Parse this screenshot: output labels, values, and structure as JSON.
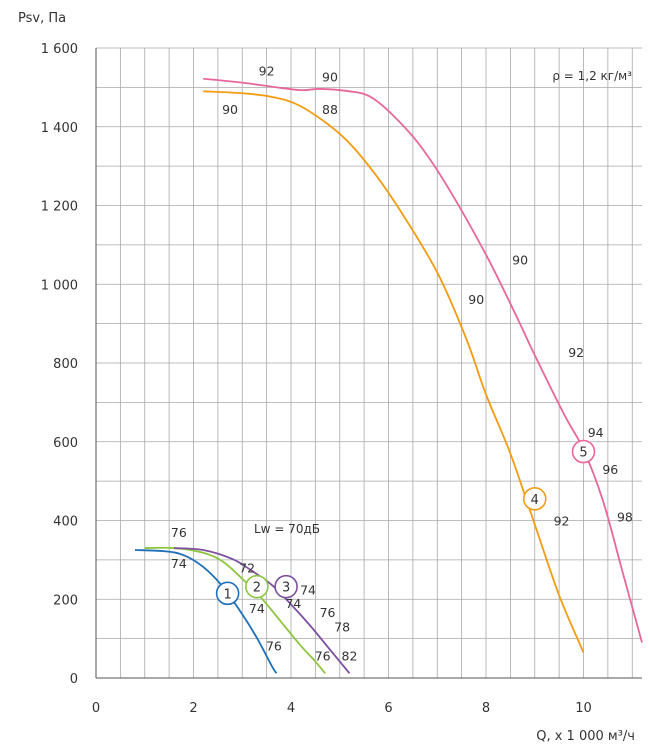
{
  "chart_data": {
    "type": "line",
    "ylabel": "Psv, Па",
    "xlabel": "Q, х 1 000 м³/ч",
    "xlim": [
      0,
      11.2
    ],
    "ylim": [
      0,
      1600
    ],
    "x_ticks": [
      0,
      2,
      4,
      6,
      8,
      10
    ],
    "x_tick_labels": [
      "0",
      "2",
      "4",
      "6",
      "8",
      "10"
    ],
    "y_ticks": [
      0,
      200,
      400,
      600,
      800,
      1000,
      1200,
      1400,
      1600
    ],
    "y_tick_labels": [
      "0",
      "200",
      "400",
      "600",
      "800",
      "1 000",
      "1 200",
      "1 400",
      "1 600"
    ],
    "grid": true,
    "minor_grid": {
      "x_step": 0.5,
      "y_step": 100
    },
    "density_note": "ρ = 1,2 кг/м³",
    "noise_note": "Lw = 70дБ",
    "series": [
      {
        "id": "1",
        "color": "#1f6fb8",
        "points": [
          [
            0.8,
            325
          ],
          [
            1.4,
            322
          ],
          [
            1.8,
            312
          ],
          [
            2.2,
            282
          ],
          [
            2.6,
            232
          ],
          [
            3.0,
            162
          ],
          [
            3.3,
            102
          ],
          [
            3.6,
            32
          ],
          [
            3.7,
            12
          ]
        ],
        "marker": [
          2.7,
          215
        ]
      },
      {
        "id": "2",
        "color": "#8cc63f",
        "points": [
          [
            1.0,
            330
          ],
          [
            1.6,
            330
          ],
          [
            2.2,
            318
          ],
          [
            2.6,
            296
          ],
          [
            3.0,
            252
          ],
          [
            3.4,
            202
          ],
          [
            3.8,
            142
          ],
          [
            4.2,
            82
          ],
          [
            4.5,
            42
          ],
          [
            4.7,
            12
          ]
        ],
        "marker": [
          3.3,
          232
        ]
      },
      {
        "id": "3",
        "color": "#7e4fa0",
        "points": [
          [
            1.6,
            330
          ],
          [
            2.2,
            325
          ],
          [
            2.8,
            302
          ],
          [
            3.2,
            272
          ],
          [
            3.6,
            237
          ],
          [
            4.0,
            187
          ],
          [
            4.4,
            132
          ],
          [
            4.8,
            72
          ],
          [
            5.2,
            12
          ]
        ],
        "marker": [
          3.9,
          232
        ]
      },
      {
        "id": "4",
        "color": "#f39c12",
        "points": [
          [
            2.2,
            1490
          ],
          [
            3.0,
            1485
          ],
          [
            3.6,
            1476
          ],
          [
            4.2,
            1452
          ],
          [
            5.0,
            1382
          ],
          [
            5.6,
            1300
          ],
          [
            6.2,
            1195
          ],
          [
            7.0,
            1030
          ],
          [
            7.6,
            860
          ],
          [
            8.0,
            720
          ],
          [
            8.5,
            570
          ],
          [
            9.0,
            390
          ],
          [
            9.5,
            210
          ],
          [
            10.0,
            65
          ]
        ],
        "marker": [
          9.0,
          455
        ]
      },
      {
        "id": "5",
        "color": "#e8679a",
        "points": [
          [
            2.2,
            1522
          ],
          [
            3.0,
            1512
          ],
          [
            3.6,
            1502
          ],
          [
            4.2,
            1493
          ],
          [
            4.6,
            1496
          ],
          [
            5.2,
            1490
          ],
          [
            5.6,
            1478
          ],
          [
            6.0,
            1440
          ],
          [
            6.6,
            1360
          ],
          [
            7.2,
            1250
          ],
          [
            8.0,
            1075
          ],
          [
            8.6,
            925
          ],
          [
            9.0,
            820
          ],
          [
            9.6,
            670
          ],
          [
            10.0,
            580
          ],
          [
            10.4,
            450
          ],
          [
            10.8,
            270
          ],
          [
            11.2,
            90
          ]
        ],
        "marker": [
          10.0,
          575
        ]
      }
    ],
    "annotations": [
      {
        "text": "92",
        "x": 3.5,
        "y": 1540
      },
      {
        "text": "90",
        "x": 4.8,
        "y": 1525
      },
      {
        "text": "90",
        "x": 2.75,
        "y": 1442
      },
      {
        "text": "88",
        "x": 4.8,
        "y": 1442
      },
      {
        "text": "90",
        "x": 8.7,
        "y": 1060
      },
      {
        "text": "90",
        "x": 7.8,
        "y": 960
      },
      {
        "text": "92",
        "x": 9.85,
        "y": 825
      },
      {
        "text": "94",
        "x": 10.25,
        "y": 622
      },
      {
        "text": "96",
        "x": 10.55,
        "y": 528
      },
      {
        "text": "98",
        "x": 10.85,
        "y": 408
      },
      {
        "text": "92",
        "x": 9.55,
        "y": 398
      },
      {
        "text": "76",
        "x": 1.7,
        "y": 368
      },
      {
        "text": "74",
        "x": 1.7,
        "y": 290
      },
      {
        "text": "72",
        "x": 3.1,
        "y": 278
      },
      {
        "text": "74",
        "x": 4.35,
        "y": 222
      },
      {
        "text": "74",
        "x": 4.05,
        "y": 188
      },
      {
        "text": "74",
        "x": 3.3,
        "y": 175
      },
      {
        "text": "76",
        "x": 4.75,
        "y": 165
      },
      {
        "text": "78",
        "x": 5.05,
        "y": 128
      },
      {
        "text": "76",
        "x": 3.65,
        "y": 80
      },
      {
        "text": "76",
        "x": 4.65,
        "y": 55
      },
      {
        "text": "82",
        "x": 5.2,
        "y": 55
      }
    ]
  }
}
